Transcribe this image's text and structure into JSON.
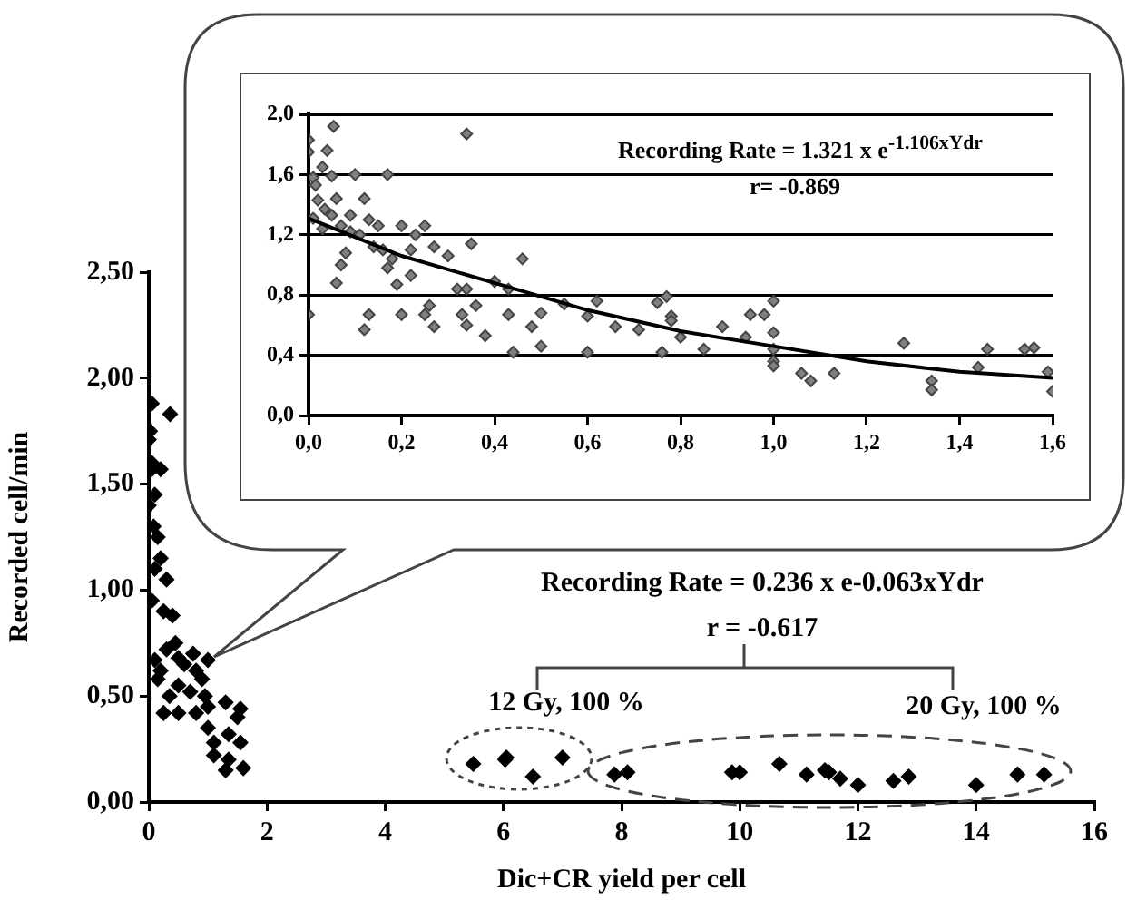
{
  "chart_data": [
    {
      "type": "scatter",
      "xlabel": "Dic+CR yield per cell",
      "ylabel": "Recorded cell/min",
      "color": "#000000",
      "marker": "diamond",
      "grid": false,
      "x": [
        0.05,
        0.36,
        0,
        0.05,
        0.2,
        0.02,
        0.05,
        0.1,
        0,
        0.08,
        0.15,
        0.2,
        0.1,
        0.3,
        0.05,
        0.25,
        0.4,
        0.45,
        0.3,
        0.1,
        0.2,
        0.5,
        0.6,
        0.75,
        0.8,
        0.9,
        1.0,
        0.5,
        0.7,
        0.95,
        0.15,
        0.35,
        0.5,
        0.8,
        1.0,
        1.3,
        1.55,
        1.5,
        1.0,
        1.1,
        1.35,
        1.55,
        1.1,
        1.35,
        1.3,
        1.6,
        0.25,
        5.49,
        6.03,
        6.05,
        6.5,
        7.0,
        7.88,
        8.1,
        9.87,
        10.0,
        10.67,
        11.13,
        11.44,
        11.51,
        11.7,
        12.0,
        12.6,
        12.86,
        14.0,
        14.7,
        15.15
      ],
      "values": [
        1.88,
        1.83,
        1.71,
        1.57,
        1.57,
        1.75,
        1.6,
        1.45,
        1.4,
        1.3,
        1.25,
        1.15,
        1.1,
        1.05,
        0.95,
        0.9,
        0.88,
        0.75,
        0.72,
        0.67,
        0.62,
        0.68,
        0.65,
        0.7,
        0.62,
        0.58,
        0.67,
        0.55,
        0.52,
        0.5,
        0.58,
        0.5,
        0.42,
        0.42,
        0.45,
        0.47,
        0.44,
        0.4,
        0.35,
        0.28,
        0.32,
        0.28,
        0.22,
        0.2,
        0.15,
        0.16,
        0.42,
        0.18,
        0.2,
        0.21,
        0.12,
        0.21,
        0.13,
        0.14,
        0.14,
        0.14,
        0.18,
        0.13,
        0.15,
        0.14,
        0.11,
        0.08,
        0.1,
        0.12,
        0.08,
        0.13,
        0.13
      ],
      "xlim": [
        0,
        16
      ],
      "xticks": [
        0,
        2,
        4,
        6,
        8,
        10,
        12,
        14,
        16
      ],
      "ylim": [
        0,
        2.5
      ],
      "yticks": [
        {
          "value": 0,
          "label": "0,00"
        },
        {
          "value": 0.5,
          "label": "0,50"
        },
        {
          "value": 1,
          "label": "1,00"
        },
        {
          "value": 1.5,
          "label": "1,50"
        },
        {
          "value": 2,
          "label": "2,00"
        },
        {
          "value": 2.5,
          "label": "2,50"
        }
      ],
      "annotations": [
        "Recording Rate = 0.236 x e-0.063xYdr",
        "r = -0.617",
        "12 Gy, 100 %",
        "20 Gy, 100 %"
      ]
    },
    {
      "type": "scatter",
      "marker": "diamond",
      "grid": "y",
      "series": [
        {
          "type": "scatter",
          "color": "#808080",
          "x": [
            0.054,
            0.34,
            0,
            0.04,
            0,
            0.03,
            0.1,
            0.17,
            0.05,
            0.01,
            0.015,
            0.06,
            0.12,
            0.02,
            0.035,
            0.05,
            0.09,
            0.13,
            0.15,
            0.2,
            0.25,
            0.01,
            0.03,
            0.07,
            0.09,
            0.11,
            0.23,
            0.14,
            0.27,
            0.35,
            0.16,
            0.22,
            0.08,
            0.18,
            0.3,
            0.46,
            0.07,
            0.17,
            0.22,
            0.06,
            0.19,
            0.4,
            0.32,
            0.34,
            0.43,
            0.36,
            0.26,
            0.25,
            0.2,
            0.13,
            0.33,
            0.43,
            0,
            0.5,
            0.27,
            0.34,
            0.48,
            0.38,
            0.12,
            0.44,
            0.5,
            0.6,
            0.55,
            0.62,
            0.6,
            0.66,
            0.71,
            0.75,
            0.77,
            0.78,
            0.78,
            0.76,
            0.8,
            0.85,
            0.89,
            0.94,
            0.95,
            0.98,
            1.0,
            1.0,
            1.0,
            1.0,
            1.0,
            1.06,
            1.08,
            1.13,
            1.28,
            1.34,
            1.34,
            1.44,
            1.46,
            1.54,
            1.56,
            1.59,
            1.6
          ],
          "values": [
            1.92,
            1.87,
            1.83,
            1.76,
            1.75,
            1.65,
            1.6,
            1.6,
            1.59,
            1.58,
            1.53,
            1.44,
            1.44,
            1.43,
            1.37,
            1.33,
            1.33,
            1.3,
            1.26,
            1.26,
            1.26,
            1.31,
            1.24,
            1.26,
            1.22,
            1.2,
            1.2,
            1.12,
            1.12,
            1.14,
            1.1,
            1.1,
            1.08,
            1.04,
            1.06,
            1.04,
            1.0,
            0.98,
            0.93,
            0.88,
            0.87,
            0.89,
            0.84,
            0.84,
            0.84,
            0.73,
            0.73,
            0.67,
            0.67,
            0.67,
            0.67,
            0.67,
            0.67,
            0.68,
            0.59,
            0.6,
            0.59,
            0.53,
            0.57,
            0.42,
            0.46,
            0.42,
            0.74,
            0.76,
            0.66,
            0.59,
            0.57,
            0.75,
            0.79,
            0.66,
            0.63,
            0.42,
            0.52,
            0.44,
            0.59,
            0.52,
            0.67,
            0.67,
            0.76,
            0.55,
            0.44,
            0.36,
            0.33,
            0.28,
            0.23,
            0.28,
            0.48,
            0.23,
            0.17,
            0.32,
            0.44,
            0.44,
            0.45,
            0.29,
            0.16
          ]
        },
        {
          "type": "line",
          "color": "#000000",
          "marker": "none",
          "x": [
            0,
            0.2,
            0.4,
            0.6,
            0.8,
            1.0,
            1.2,
            1.4,
            1.6
          ],
          "values": [
            1.31,
            1.06,
            0.88,
            0.7,
            0.56,
            0.46,
            0.36,
            0.29,
            0.25
          ]
        }
      ],
      "xlim": [
        0,
        1.6
      ],
      "xticks": [
        {
          "value": 0,
          "label": "0,0"
        },
        {
          "value": 0.2,
          "label": "0,2"
        },
        {
          "value": 0.4,
          "label": "0,4"
        },
        {
          "value": 0.6,
          "label": "0,6"
        },
        {
          "value": 0.8,
          "label": "0,8"
        },
        {
          "value": 1,
          "label": "1,0"
        },
        {
          "value": 1.2,
          "label": "1,2"
        },
        {
          "value": 1.4,
          "label": "1,4"
        },
        {
          "value": 1.6,
          "label": "1,6"
        }
      ],
      "ylim": [
        0,
        2
      ],
      "yticks": [
        {
          "value": 0,
          "label": "0,0"
        },
        {
          "value": 0.4,
          "label": "0,4"
        },
        {
          "value": 0.8,
          "label": "0,8"
        },
        {
          "value": 1.2,
          "label": "1,2"
        },
        {
          "value": 1.6,
          "label": "1,6"
        },
        {
          "value": 2,
          "label": "2,0"
        }
      ],
      "annotations": [
        "Recording Rate = 1.321 x e$^{-1.106xYdr}$",
        "r= -0.869"
      ]
    }
  ]
}
